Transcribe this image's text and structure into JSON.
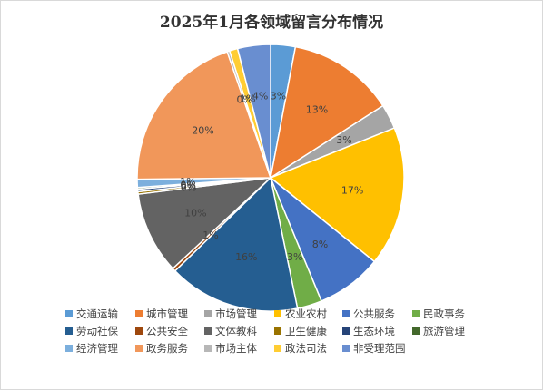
{
  "chart_data": {
    "type": "pie",
    "title": "2025年1月各领域留言分布情况",
    "legend_position": "bottom",
    "slices": [
      {
        "name": "交通运输",
        "value": 3,
        "label": "3%",
        "color": "#5B9BD5"
      },
      {
        "name": "城市管理",
        "value": 13,
        "label": "13%",
        "color": "#ED7D31"
      },
      {
        "name": "市场管理",
        "value": 3,
        "label": "3%",
        "color": "#A5A5A5"
      },
      {
        "name": "农业农村",
        "value": 17,
        "label": "17%",
        "color": "#FFC000"
      },
      {
        "name": "公共服务",
        "value": 8,
        "label": "8%",
        "color": "#4472C4"
      },
      {
        "name": "民政事务",
        "value": 3,
        "label": "3%",
        "color": "#70AD47"
      },
      {
        "name": "劳动社保",
        "value": 16,
        "label": "16%",
        "color": "#255E91"
      },
      {
        "name": "公共安全",
        "value": 0.4,
        "label": "1%",
        "color": "#9E480E"
      },
      {
        "name": "文体教科",
        "value": 10,
        "label": "10%",
        "color": "#636363"
      },
      {
        "name": "卫生健康",
        "value": 0.3,
        "label": "0%",
        "color": "#997300"
      },
      {
        "name": "生态环境",
        "value": 0.3,
        "label": "0%",
        "color": "#264478"
      },
      {
        "name": "旅游管理",
        "value": 0.2,
        "label": "0%",
        "color": "#43682B"
      },
      {
        "name": "经济管理",
        "value": 1,
        "label": "1%",
        "color": "#7CAFDD"
      },
      {
        "name": "政务服务",
        "value": 20,
        "label": "20%",
        "color": "#F1975A"
      },
      {
        "name": "市场主体",
        "value": 0.3,
        "label": "0%",
        "color": "#B7B7B7"
      },
      {
        "name": "政法司法",
        "value": 1,
        "label": "1%",
        "color": "#FFCD33"
      },
      {
        "name": "非受理范围",
        "value": 4,
        "label": "4%",
        "color": "#698ED0"
      }
    ]
  }
}
